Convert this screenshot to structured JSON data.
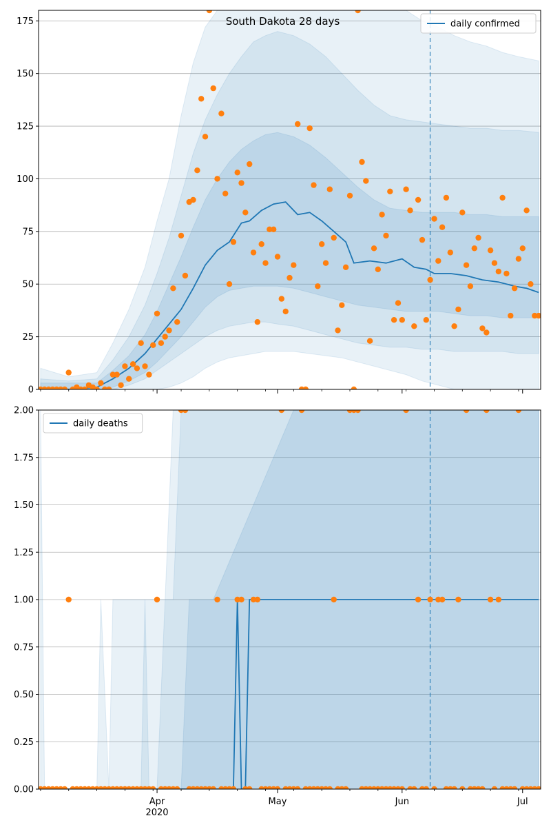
{
  "colors": {
    "line": "#1f77b4",
    "points": "#ff7f0e",
    "band": "#1f77b4",
    "grid": "#b0b0b0"
  },
  "chart_data": [
    {
      "type": "line",
      "title": "South Dakota 28 days",
      "legend": {
        "label": "daily confirmed",
        "placement": "top-right"
      },
      "grid": true,
      "x_range": [
        "2020-03-03",
        "2020-07-05"
      ],
      "ylim": [
        0,
        180
      ],
      "yticks": [
        0,
        25,
        50,
        75,
        100,
        125,
        150,
        175
      ],
      "ytick_labels": [
        "0",
        "25",
        "50",
        "75",
        "100",
        "125",
        "150",
        "175"
      ],
      "forecast_start": "2020-06-08",
      "line_x": [
        "2020-03-03",
        "2020-03-10",
        "2020-03-17",
        "2020-03-21",
        "2020-03-25",
        "2020-03-29",
        "2020-04-01",
        "2020-04-04",
        "2020-04-07",
        "2020-04-10",
        "2020-04-13",
        "2020-04-16",
        "2020-04-19",
        "2020-04-22",
        "2020-04-24",
        "2020-04-27",
        "2020-04-30",
        "2020-05-03",
        "2020-05-06",
        "2020-05-09",
        "2020-05-12",
        "2020-05-15",
        "2020-05-18",
        "2020-05-20",
        "2020-05-24",
        "2020-05-28",
        "2020-06-01",
        "2020-06-04",
        "2020-06-07",
        "2020-06-09",
        "2020-06-13",
        "2020-06-17",
        "2020-06-21",
        "2020-06-25",
        "2020-06-29",
        "2020-07-02",
        "2020-07-05"
      ],
      "line_y": [
        0,
        0,
        1,
        5,
        10,
        17,
        24,
        31,
        38,
        48,
        59,
        66,
        70,
        79,
        80,
        85,
        88,
        89,
        83,
        84,
        80,
        75,
        70,
        60,
        61,
        60,
        62,
        58,
        57,
        55,
        55,
        54,
        52,
        51,
        49,
        48,
        46
      ],
      "band_x": [
        "2020-03-03",
        "2020-03-10",
        "2020-03-17",
        "2020-03-21",
        "2020-03-25",
        "2020-03-29",
        "2020-04-01",
        "2020-04-04",
        "2020-04-07",
        "2020-04-10",
        "2020-04-13",
        "2020-04-16",
        "2020-04-19",
        "2020-04-22",
        "2020-04-25",
        "2020-04-28",
        "2020-05-01",
        "2020-05-05",
        "2020-05-09",
        "2020-05-13",
        "2020-05-17",
        "2020-05-21",
        "2020-05-25",
        "2020-05-29",
        "2020-06-02",
        "2020-06-06",
        "2020-06-10",
        "2020-06-14",
        "2020-06-18",
        "2020-06-22",
        "2020-06-26",
        "2020-06-30",
        "2020-07-05"
      ],
      "band_outer_hi": [
        10,
        6,
        8,
        22,
        38,
        58,
        80,
        100,
        130,
        155,
        172,
        180,
        180,
        180,
        180,
        180,
        180,
        180,
        180,
        180,
        180,
        180,
        180,
        180,
        180,
        175,
        172,
        168,
        165,
        163,
        160,
        158,
        156
      ],
      "band_outer_lo": [
        0,
        0,
        0,
        0,
        0,
        0,
        0,
        1,
        3,
        6,
        10,
        13,
        15,
        16,
        17,
        18,
        18,
        18,
        17,
        16,
        15,
        13,
        11,
        9,
        7,
        4,
        2,
        0,
        0,
        0,
        0,
        0,
        0
      ],
      "band_mid_hi": [
        5,
        4,
        5,
        14,
        25,
        40,
        55,
        72,
        92,
        112,
        128,
        140,
        150,
        158,
        165,
        168,
        170,
        168,
        164,
        158,
        150,
        142,
        135,
        130,
        128,
        127,
        126,
        125,
        124,
        124,
        123,
        123,
        122
      ],
      "band_mid_lo": [
        0,
        0,
        0,
        0,
        2,
        5,
        9,
        13,
        17,
        21,
        25,
        28,
        30,
        31,
        32,
        32,
        31,
        30,
        28,
        26,
        24,
        22,
        21,
        20,
        20,
        19,
        19,
        18,
        18,
        18,
        18,
        17,
        17
      ],
      "band_inner_hi": [
        3,
        3,
        3,
        9,
        16,
        26,
        37,
        50,
        63,
        77,
        90,
        100,
        108,
        114,
        118,
        121,
        122,
        120,
        116,
        110,
        103,
        96,
        90,
        86,
        85,
        84,
        84,
        84,
        83,
        83,
        82,
        82,
        82
      ],
      "band_inner_lo": [
        0,
        0,
        0,
        1,
        4,
        8,
        13,
        19,
        25,
        32,
        39,
        44,
        47,
        48,
        49,
        49,
        49,
        48,
        46,
        44,
        42,
        40,
        39,
        38,
        37,
        37,
        37,
        36,
        35,
        35,
        34,
        34,
        34
      ],
      "points_x": [
        "2020-03-03",
        "2020-03-04",
        "2020-03-05",
        "2020-03-06",
        "2020-03-07",
        "2020-03-08",
        "2020-03-09",
        "2020-03-10",
        "2020-03-11",
        "2020-03-12",
        "2020-03-13",
        "2020-03-14",
        "2020-03-15",
        "2020-03-16",
        "2020-03-17",
        "2020-03-18",
        "2020-03-19",
        "2020-03-20",
        "2020-03-21",
        "2020-03-22",
        "2020-03-23",
        "2020-03-24",
        "2020-03-25",
        "2020-03-26",
        "2020-03-27",
        "2020-03-28",
        "2020-03-29",
        "2020-03-30",
        "2020-03-31",
        "2020-04-01",
        "2020-04-02",
        "2020-04-03",
        "2020-04-04",
        "2020-04-05",
        "2020-04-06",
        "2020-04-07",
        "2020-04-08",
        "2020-04-09",
        "2020-04-10",
        "2020-04-11",
        "2020-04-12",
        "2020-04-13",
        "2020-04-14",
        "2020-04-15",
        "2020-04-16",
        "2020-04-17",
        "2020-04-18",
        "2020-04-19",
        "2020-04-20",
        "2020-04-21",
        "2020-04-22",
        "2020-04-23",
        "2020-04-24",
        "2020-04-25",
        "2020-04-26",
        "2020-04-27",
        "2020-04-28",
        "2020-04-29",
        "2020-04-30",
        "2020-05-01",
        "2020-05-02",
        "2020-05-03",
        "2020-05-04",
        "2020-05-05",
        "2020-05-06",
        "2020-05-07",
        "2020-05-08",
        "2020-05-09",
        "2020-05-10",
        "2020-05-11",
        "2020-05-12",
        "2020-05-13",
        "2020-05-14",
        "2020-05-15",
        "2020-05-16",
        "2020-05-17",
        "2020-05-18",
        "2020-05-19",
        "2020-05-20",
        "2020-05-21",
        "2020-05-22",
        "2020-05-23",
        "2020-05-24",
        "2020-05-25",
        "2020-05-26",
        "2020-05-27",
        "2020-05-28",
        "2020-05-29",
        "2020-05-30",
        "2020-05-31",
        "2020-06-01",
        "2020-06-02",
        "2020-06-03",
        "2020-06-04",
        "2020-06-05",
        "2020-06-06",
        "2020-06-07",
        "2020-06-08",
        "2020-06-09",
        "2020-06-10",
        "2020-06-11",
        "2020-06-12",
        "2020-06-13",
        "2020-06-14",
        "2020-06-15",
        "2020-06-16",
        "2020-06-17",
        "2020-06-18",
        "2020-06-19",
        "2020-06-20",
        "2020-06-21",
        "2020-06-22",
        "2020-06-23",
        "2020-06-24",
        "2020-06-25",
        "2020-06-26",
        "2020-06-27",
        "2020-06-28",
        "2020-06-29",
        "2020-06-30",
        "2020-07-01",
        "2020-07-02",
        "2020-07-03",
        "2020-07-04",
        "2020-07-05"
      ],
      "points_y": [
        0,
        0,
        0,
        0,
        0,
        0,
        0,
        8,
        0,
        1,
        0,
        0,
        2,
        1,
        0,
        3,
        0,
        0,
        7,
        7,
        2,
        11,
        5,
        12,
        10,
        22,
        11,
        7,
        21,
        36,
        22,
        25,
        28,
        48,
        32,
        73,
        54,
        89,
        90,
        104,
        138,
        120,
        180,
        143,
        100,
        131,
        93,
        50,
        70,
        103,
        98,
        84,
        107,
        65,
        32,
        69,
        60,
        76,
        76,
        63,
        43,
        37,
        53,
        59,
        126,
        0,
        0,
        124,
        97,
        49,
        69,
        60,
        95,
        72,
        28,
        40,
        58,
        92,
        0,
        180,
        108,
        99,
        23,
        67,
        57,
        83,
        73,
        94,
        33,
        41,
        33,
        95,
        85,
        30,
        90,
        71,
        33,
        52,
        81,
        61,
        77,
        91,
        65,
        30,
        38,
        84,
        59,
        49,
        67,
        72,
        29,
        27,
        66,
        60,
        56,
        91,
        55,
        35,
        48,
        62,
        67,
        85,
        50,
        35,
        35
      ]
    },
    {
      "type": "line",
      "title": "",
      "legend": {
        "label": "daily deaths",
        "placement": "top-left"
      },
      "grid": true,
      "x_range": [
        "2020-03-03",
        "2020-07-05"
      ],
      "xticks": [
        "2020-04-01",
        "2020-05-01",
        "2020-06-01",
        "2020-07-01"
      ],
      "xtick_labels": [
        "Apr",
        "May",
        "Jun",
        "Jul"
      ],
      "xtick_sublabel": "2020",
      "ylim": [
        0,
        2
      ],
      "yticks": [
        0,
        0.25,
        0.5,
        0.75,
        1,
        1.25,
        1.5,
        1.75,
        2
      ],
      "ytick_labels": [
        "0.00",
        "0.25",
        "0.50",
        "0.75",
        "1.00",
        "1.25",
        "1.50",
        "1.75",
        "2.00"
      ],
      "forecast_start": "2020-06-08",
      "line_x": [
        "2020-03-03",
        "2020-04-20",
        "2020-04-21",
        "2020-04-22",
        "2020-04-23",
        "2020-04-24",
        "2020-04-25",
        "2020-07-05"
      ],
      "line_y": [
        0,
        0,
        1,
        0,
        0,
        1,
        1,
        1
      ],
      "points_x": [
        "2020-03-03",
        "2020-03-04",
        "2020-03-05",
        "2020-03-06",
        "2020-03-07",
        "2020-03-08",
        "2020-03-09",
        "2020-03-10",
        "2020-03-11",
        "2020-03-12",
        "2020-03-13",
        "2020-03-14",
        "2020-03-15",
        "2020-03-16",
        "2020-03-17",
        "2020-03-18",
        "2020-03-19",
        "2020-03-20",
        "2020-03-21",
        "2020-03-22",
        "2020-03-23",
        "2020-03-24",
        "2020-03-25",
        "2020-03-26",
        "2020-03-27",
        "2020-03-28",
        "2020-03-29",
        "2020-03-30",
        "2020-03-31",
        "2020-04-01",
        "2020-04-02",
        "2020-04-03",
        "2020-04-04",
        "2020-04-05",
        "2020-04-06",
        "2020-04-07",
        "2020-04-08",
        "2020-04-09",
        "2020-04-10",
        "2020-04-11",
        "2020-04-12",
        "2020-04-13",
        "2020-04-14",
        "2020-04-15",
        "2020-04-16",
        "2020-04-17",
        "2020-04-18",
        "2020-04-19",
        "2020-04-20",
        "2020-04-21",
        "2020-04-22",
        "2020-04-23",
        "2020-04-24",
        "2020-04-25",
        "2020-04-26",
        "2020-04-27",
        "2020-04-28",
        "2020-04-29",
        "2020-04-30",
        "2020-05-01",
        "2020-05-02",
        "2020-05-03",
        "2020-05-04",
        "2020-05-05",
        "2020-05-06",
        "2020-05-07",
        "2020-05-08",
        "2020-05-09",
        "2020-05-10",
        "2020-05-11",
        "2020-05-12",
        "2020-05-13",
        "2020-05-14",
        "2020-05-15",
        "2020-05-16",
        "2020-05-17",
        "2020-05-18",
        "2020-05-19",
        "2020-05-20",
        "2020-05-21",
        "2020-05-22",
        "2020-05-23",
        "2020-05-24",
        "2020-05-25",
        "2020-05-26",
        "2020-05-27",
        "2020-05-28",
        "2020-05-29",
        "2020-05-30",
        "2020-05-31",
        "2020-06-01",
        "2020-06-02",
        "2020-06-03",
        "2020-06-04",
        "2020-06-05",
        "2020-06-06",
        "2020-06-07",
        "2020-06-08",
        "2020-06-09",
        "2020-06-10",
        "2020-06-11",
        "2020-06-12",
        "2020-06-13",
        "2020-06-14",
        "2020-06-15",
        "2020-06-16",
        "2020-06-17",
        "2020-06-18",
        "2020-06-19",
        "2020-06-20",
        "2020-06-21",
        "2020-06-22",
        "2020-06-23",
        "2020-06-24",
        "2020-06-25",
        "2020-06-26",
        "2020-06-27",
        "2020-06-28",
        "2020-06-29",
        "2020-06-30",
        "2020-07-01",
        "2020-07-02",
        "2020-07-03",
        "2020-07-04",
        "2020-07-05"
      ],
      "points_y": [
        0,
        0,
        0,
        0,
        0,
        0,
        0,
        1,
        0,
        0,
        0,
        0,
        0,
        0,
        0,
        0,
        0,
        0,
        0,
        0,
        0,
        0,
        0,
        0,
        0,
        0,
        0,
        0,
        0,
        1,
        0,
        0,
        0,
        0,
        0,
        2,
        2,
        0,
        0,
        0,
        0,
        0,
        0,
        0,
        1,
        0,
        0,
        0,
        0,
        1,
        1,
        0,
        0,
        1,
        1,
        0,
        0,
        0,
        0,
        0,
        2,
        0,
        0,
        0,
        0,
        2,
        0,
        0,
        0,
        0,
        0,
        0,
        0,
        1,
        0,
        0,
        0,
        2,
        2,
        2,
        0,
        0,
        0,
        0,
        0,
        0,
        0,
        0,
        0,
        0,
        0,
        2,
        0,
        0,
        1,
        0,
        0,
        1,
        0,
        1,
        1,
        0,
        0,
        0,
        1,
        0,
        2,
        0,
        0,
        0,
        0,
        2,
        1,
        0,
        1,
        0,
        0,
        0,
        0,
        2,
        0,
        0,
        0,
        0,
        0
      ],
      "band_x": [
        "2020-03-03",
        "2020-03-04",
        "2020-03-17",
        "2020-03-18",
        "2020-03-20",
        "2020-03-21",
        "2020-03-28",
        "2020-03-29",
        "2020-03-30",
        "2020-04-01",
        "2020-04-03",
        "2020-04-05",
        "2020-04-07",
        "2020-04-09",
        "2020-04-12",
        "2020-04-15",
        "2020-05-05",
        "2020-06-08",
        "2020-07-05"
      ],
      "band_outer_hi": [
        2,
        0,
        0,
        1,
        0,
        1,
        1,
        1,
        1,
        1,
        1,
        2,
        2,
        2,
        2,
        2,
        2,
        2,
        2
      ],
      "band_outer_lo": [
        0,
        0,
        0,
        0,
        0,
        0,
        0,
        0,
        0,
        0,
        0,
        0,
        0,
        0,
        0,
        0,
        0,
        0,
        0
      ],
      "band_mid_hi": [
        0,
        0,
        0,
        0,
        0,
        0,
        0,
        1,
        0,
        0,
        1,
        1,
        2,
        2,
        2,
        2,
        2,
        2,
        2
      ],
      "band_mid_lo": [
        0,
        0,
        0,
        0,
        0,
        0,
        0,
        0,
        0,
        0,
        0,
        0,
        0,
        0,
        0,
        0,
        0,
        0,
        0
      ],
      "band_inner_hi": [
        0,
        0,
        0,
        0,
        0,
        0,
        0,
        0,
        0,
        0,
        0,
        0,
        0,
        1,
        1,
        1,
        2,
        2,
        2
      ],
      "band_inner_lo": [
        0,
        0,
        0,
        0,
        0,
        0,
        0,
        0,
        0,
        0,
        0,
        0,
        0,
        0,
        0,
        0,
        0,
        0,
        0
      ]
    }
  ]
}
